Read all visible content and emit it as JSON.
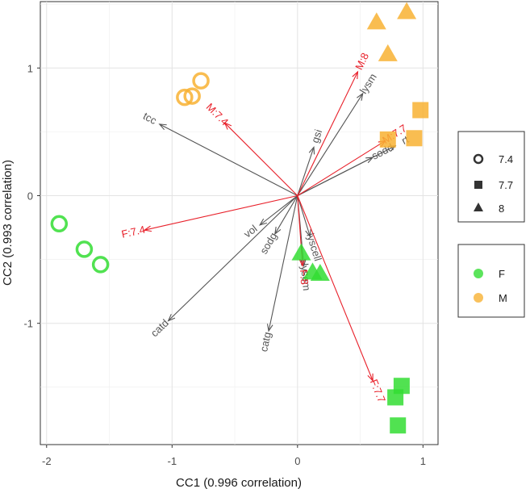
{
  "chart_data": {
    "type": "scatter",
    "subtype": "biplot",
    "xlabel": "CC1 (0.996 correlation)",
    "ylabel": "CC2 (0.993 correlation)",
    "xlim": [
      -2.05,
      1.12
    ],
    "ylim": [
      -1.95,
      1.52
    ],
    "xticks": [
      -2,
      -1,
      0,
      1
    ],
    "yticks": [
      -1,
      0,
      1
    ],
    "grid": true,
    "legend_position": "right",
    "colors": {
      "F": "#33dd33",
      "M": "#f8b133",
      "vector_gray": "#555555",
      "vector_red": "#e8202a"
    },
    "shape_legend": [
      {
        "label": "7.4",
        "shape": "circle-open"
      },
      {
        "label": "7.7",
        "shape": "square"
      },
      {
        "label": "8",
        "shape": "triangle"
      }
    ],
    "color_legend": [
      {
        "label": "F",
        "color": "#33dd33"
      },
      {
        "label": "M",
        "color": "#f8b133"
      }
    ],
    "points": [
      {
        "x": -1.9,
        "y": -0.22,
        "group": "F",
        "shape": "7.4"
      },
      {
        "x": -1.7,
        "y": -0.42,
        "group": "F",
        "shape": "7.4"
      },
      {
        "x": -1.57,
        "y": -0.54,
        "group": "F",
        "shape": "7.4"
      },
      {
        "x": -0.9,
        "y": 0.77,
        "group": "M",
        "shape": "7.4"
      },
      {
        "x": -0.84,
        "y": 0.78,
        "group": "M",
        "shape": "7.4"
      },
      {
        "x": -0.77,
        "y": 0.9,
        "group": "M",
        "shape": "7.4"
      },
      {
        "x": 0.72,
        "y": 0.44,
        "group": "M",
        "shape": "7.7"
      },
      {
        "x": 0.93,
        "y": 0.45,
        "group": "M",
        "shape": "7.7"
      },
      {
        "x": 0.98,
        "y": 0.67,
        "group": "M",
        "shape": "7.7"
      },
      {
        "x": 0.63,
        "y": 1.36,
        "group": "M",
        "shape": "8"
      },
      {
        "x": 0.87,
        "y": 1.44,
        "group": "M",
        "shape": "8"
      },
      {
        "x": 0.72,
        "y": 1.11,
        "group": "M",
        "shape": "8"
      },
      {
        "x": 0.03,
        "y": -0.45,
        "group": "F",
        "shape": "8"
      },
      {
        "x": 0.12,
        "y": -0.6,
        "group": "F",
        "shape": "8"
      },
      {
        "x": 0.18,
        "y": -0.61,
        "group": "F",
        "shape": "8"
      },
      {
        "x": 0.83,
        "y": -1.49,
        "group": "F",
        "shape": "7.7"
      },
      {
        "x": 0.78,
        "y": -1.58,
        "group": "F",
        "shape": "7.7"
      },
      {
        "x": 0.8,
        "y": -1.8,
        "group": "F",
        "shape": "7.7"
      }
    ],
    "gray_vectors": [
      {
        "label": "tcc",
        "x": -1.1,
        "y": 0.56
      },
      {
        "label": "catd",
        "x": -1.03,
        "y": -0.98
      },
      {
        "label": "catg",
        "x": -0.23,
        "y": -1.06
      },
      {
        "label": "vol",
        "x": -0.3,
        "y": -0.23
      },
      {
        "label": "sodg",
        "x": -0.18,
        "y": -0.3
      },
      {
        "label": "gsi",
        "x": 0.13,
        "y": 0.38
      },
      {
        "label": "lysm",
        "x": 0.52,
        "y": 0.8
      },
      {
        "label": "sodd",
        "x": 0.6,
        "y": 0.3
      },
      {
        "label": "rt",
        "x": 0.78,
        "y": 0.39
      },
      {
        "label": "lyscell",
        "x": 0.1,
        "y": -0.32
      },
      {
        "label": "lysem",
        "x": 0.05,
        "y": -0.55
      }
    ],
    "red_vectors": [
      {
        "label": "M:7.4",
        "x": -0.58,
        "y": 0.57
      },
      {
        "label": "M:8",
        "x": 0.48,
        "y": 0.97
      },
      {
        "label": "M:7.7",
        "x": 0.7,
        "y": 0.43
      },
      {
        "label": "F:7.4",
        "x": -1.22,
        "y": -0.27
      },
      {
        "label": "F:8",
        "x": 0.04,
        "y": -0.55
      },
      {
        "label": "F:7.7",
        "x": 0.6,
        "y": -1.45
      }
    ]
  }
}
